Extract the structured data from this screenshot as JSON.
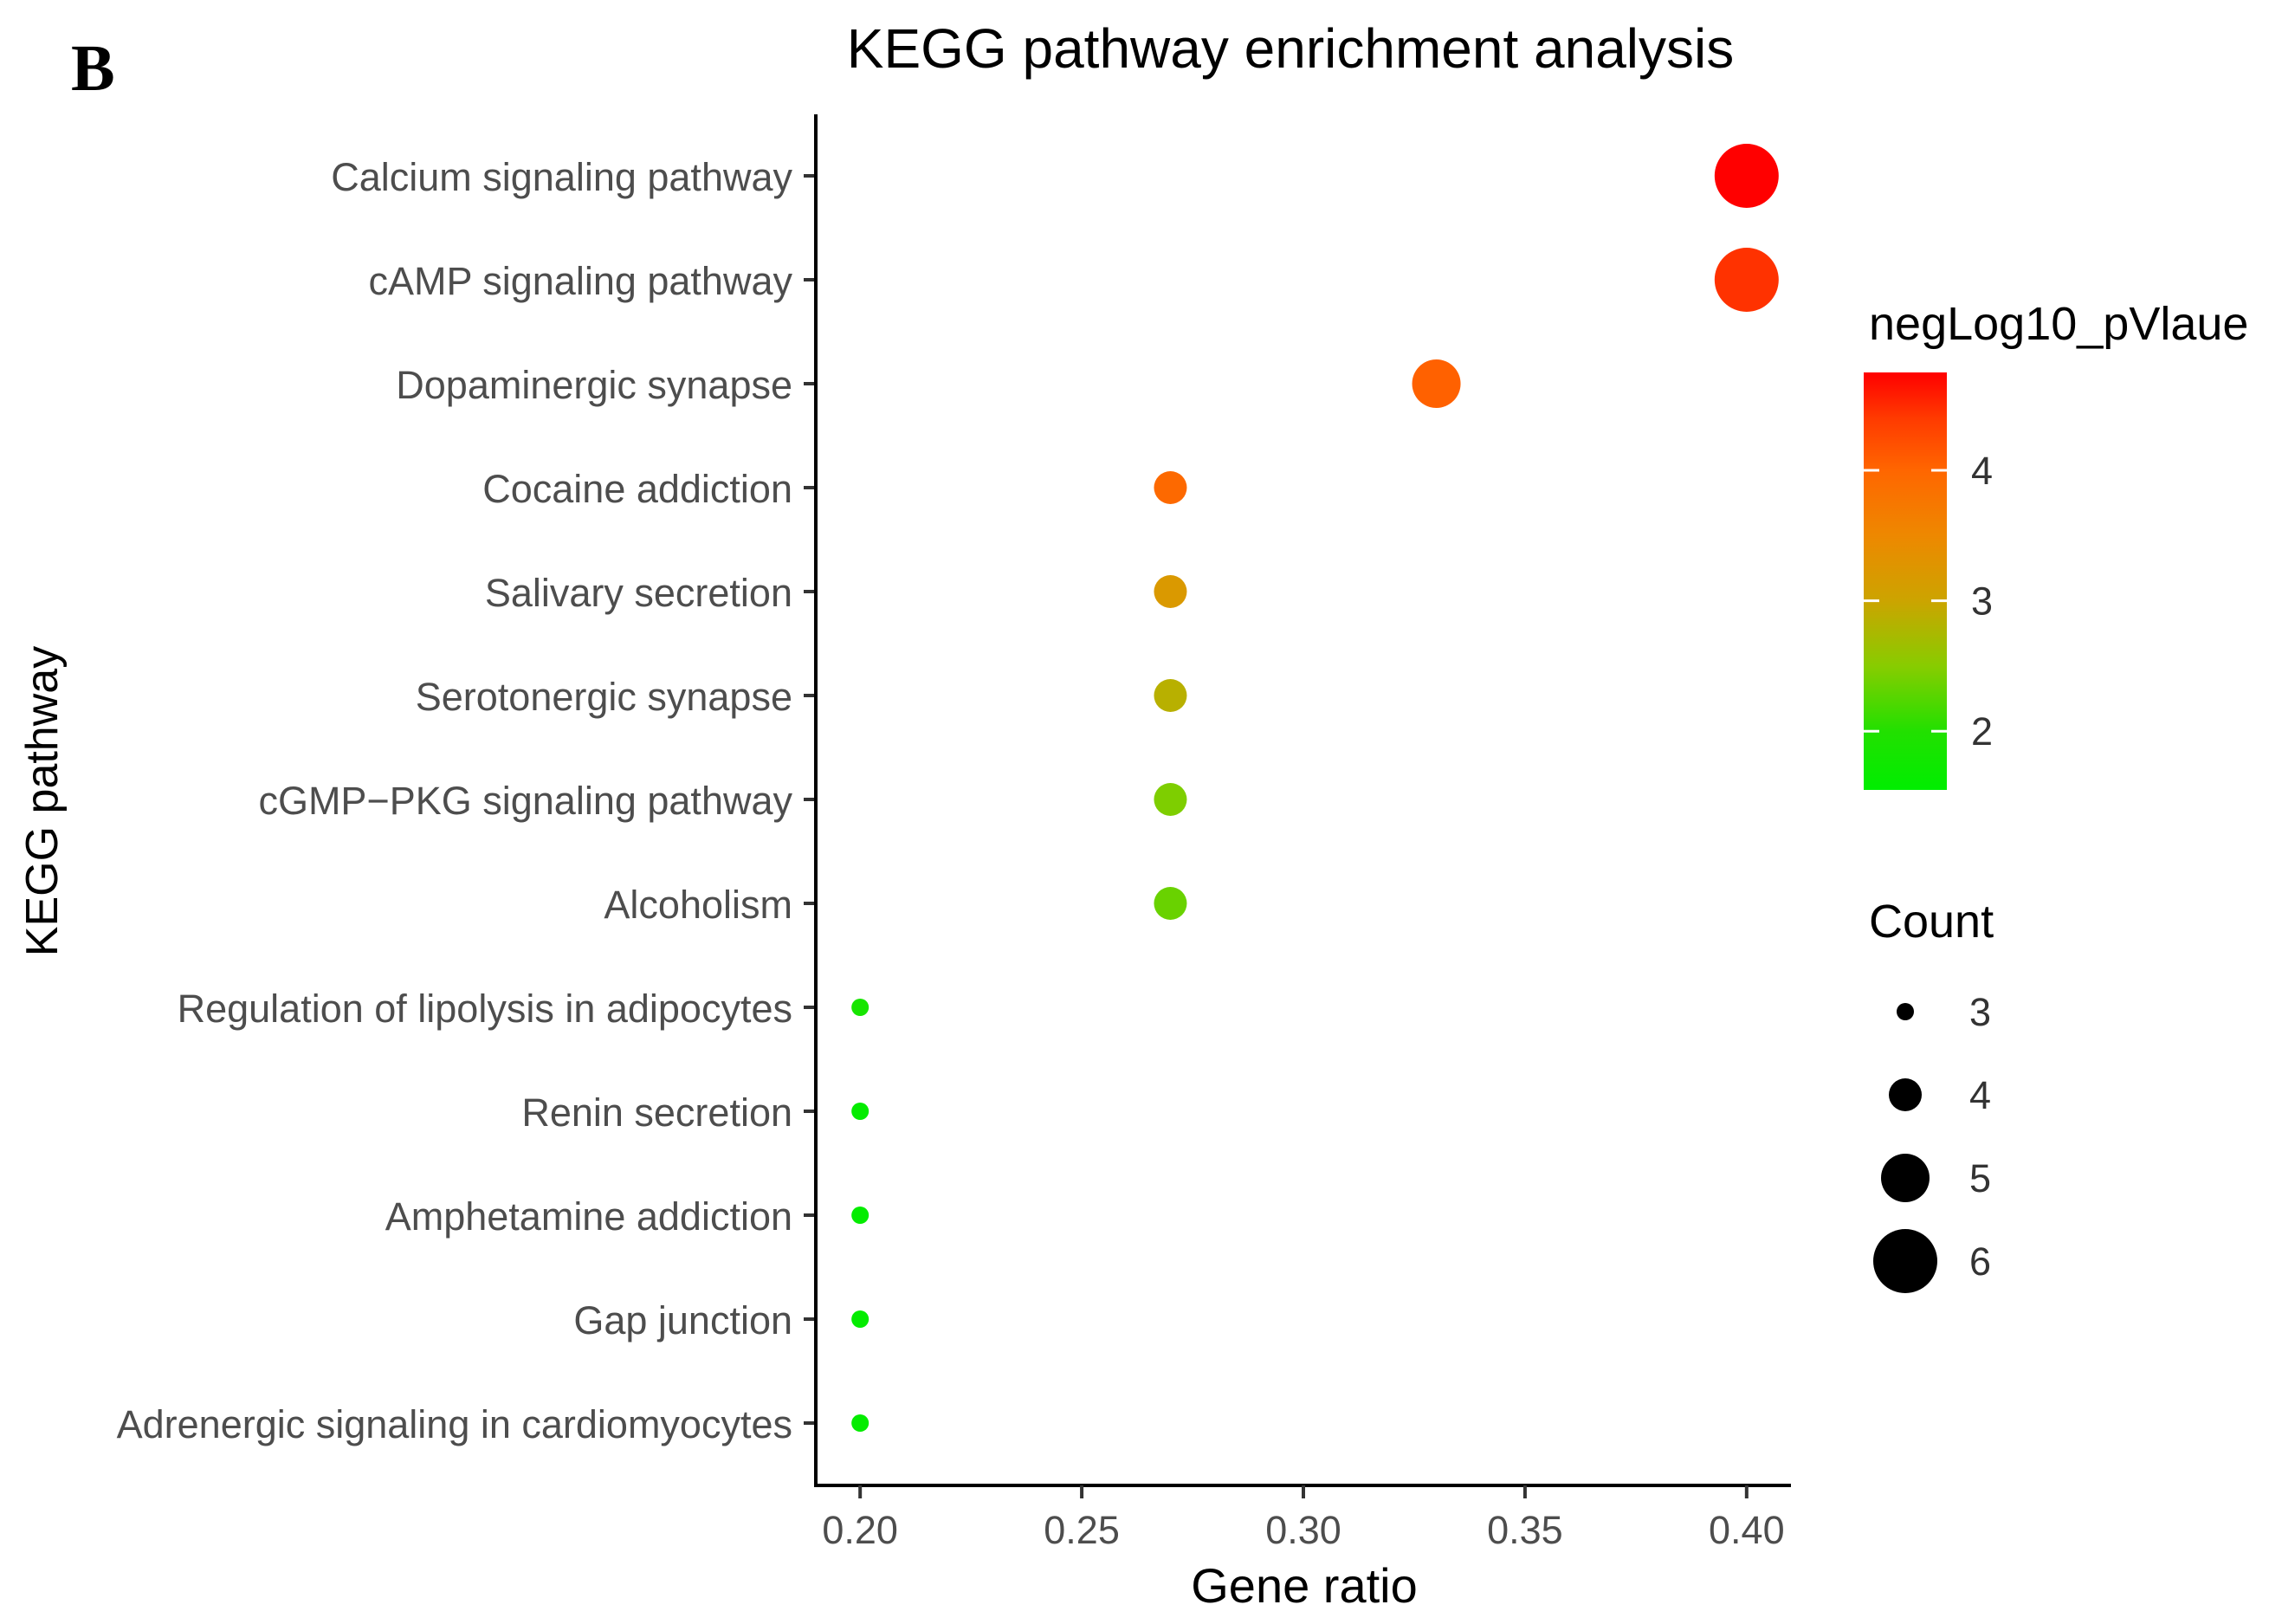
{
  "panel_label": "B",
  "chart_data": {
    "type": "scatter",
    "title": "KEGG pathway enrichment analysis",
    "xlabel": "Gene ratio",
    "ylabel": "KEGG pathway",
    "xlim": [
      0.19,
      0.41
    ],
    "x_ticks": [
      {
        "value": 0.2,
        "label": "0.20"
      },
      {
        "value": 0.25,
        "label": "0.25"
      },
      {
        "value": 0.3,
        "label": "0.30"
      },
      {
        "value": 0.35,
        "label": "0.35"
      },
      {
        "value": 0.4,
        "label": "0.40"
      }
    ],
    "color_scale": {
      "title": "negLog10_pVlaue",
      "min": 1.55,
      "max": 4.75,
      "low_color": "#00ee00",
      "high_color": "#ff0000",
      "stops": [
        {
          "value": 1.55,
          "color": "#00ee00"
        },
        {
          "value": 2.0,
          "color": "#22e000"
        },
        {
          "value": 2.5,
          "color": "#88cc00"
        },
        {
          "value": 3.0,
          "color": "#cca400"
        },
        {
          "value": 3.5,
          "color": "#ee8800"
        },
        {
          "value": 4.0,
          "color": "#ff6600"
        },
        {
          "value": 4.4,
          "color": "#ff3a00"
        },
        {
          "value": 4.75,
          "color": "#ff0000"
        }
      ],
      "ticks": [
        {
          "value": 2,
          "label": "2"
        },
        {
          "value": 3,
          "label": "3"
        },
        {
          "value": 4,
          "label": "4"
        }
      ]
    },
    "size_legend": {
      "title": "Count",
      "entries": [
        {
          "value": 3,
          "label": "3"
        },
        {
          "value": 4,
          "label": "4"
        },
        {
          "value": 5,
          "label": "5"
        },
        {
          "value": 6,
          "label": "6"
        }
      ]
    },
    "points": [
      {
        "pathway": "Calcium signaling pathway",
        "gene_ratio": 0.4,
        "count": 6,
        "negLog10_pValue": 4.75
      },
      {
        "pathway": "cAMP signaling pathway",
        "gene_ratio": 0.4,
        "count": 6,
        "negLog10_pValue": 4.45
      },
      {
        "pathway": "Dopaminergic synapse",
        "gene_ratio": 0.33,
        "count": 5,
        "negLog10_pValue": 4.05
      },
      {
        "pathway": "Cocaine addiction",
        "gene_ratio": 0.27,
        "count": 4,
        "negLog10_pValue": 3.95
      },
      {
        "pathway": "Salivary secretion",
        "gene_ratio": 0.27,
        "count": 4,
        "negLog10_pValue": 3.2
      },
      {
        "pathway": "Serotonergic synapse",
        "gene_ratio": 0.27,
        "count": 4,
        "negLog10_pValue": 2.85
      },
      {
        "pathway": "cGMP−PKG signaling pathway",
        "gene_ratio": 0.27,
        "count": 4,
        "negLog10_pValue": 2.45
      },
      {
        "pathway": "Alcoholism",
        "gene_ratio": 0.27,
        "count": 4,
        "negLog10_pValue": 2.35
      },
      {
        "pathway": "Regulation of lipolysis in adipocytes",
        "gene_ratio": 0.2,
        "count": 3,
        "negLog10_pValue": 1.85
      },
      {
        "pathway": "Renin secretion",
        "gene_ratio": 0.2,
        "count": 3,
        "negLog10_pValue": 1.6
      },
      {
        "pathway": "Amphetamine addiction",
        "gene_ratio": 0.2,
        "count": 3,
        "negLog10_pValue": 1.6
      },
      {
        "pathway": "Gap junction",
        "gene_ratio": 0.2,
        "count": 3,
        "negLog10_pValue": 1.6
      },
      {
        "pathway": "Adrenergic signaling in cardiomyocytes",
        "gene_ratio": 0.2,
        "count": 3,
        "negLog10_pValue": 1.6
      }
    ]
  }
}
